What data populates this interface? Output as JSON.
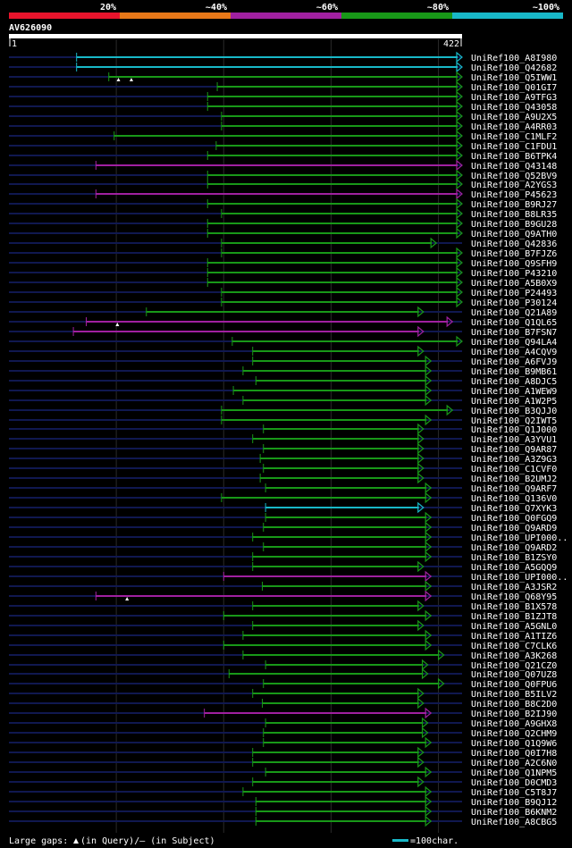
{
  "chart_data": {
    "type": "alignment",
    "query_id": "AV626090",
    "query_start": "1",
    "query_end": "422",
    "query_length": 422,
    "identity_legend": [
      {
        "label": "20%",
        "color": "#e8142c"
      },
      {
        "label": "~40%",
        "color": "#e87818"
      },
      {
        "label": "~60%",
        "color": "#a020a0"
      },
      {
        "label": "~80%",
        "color": "#189818"
      },
      {
        "label": "~100%",
        "color": "#18b8c8"
      }
    ],
    "colors": {
      "cyan": "#18b8c8",
      "green": "#189818",
      "magenta": "#a020a0",
      "bg_line": "#101850"
    },
    "hits": [
      {
        "name": "UniRef100_A8I980",
        "start": 63,
        "end": 422,
        "color": "cyan"
      },
      {
        "name": "UniRef100_Q42682",
        "start": 63,
        "end": 422,
        "color": "cyan"
      },
      {
        "name": "UniRef100_Q5IWW1",
        "start": 93,
        "end": 422,
        "color": "green",
        "gaps": [
          102,
          114
        ]
      },
      {
        "name": "UniRef100_Q01GI7",
        "start": 194,
        "end": 422,
        "color": "green"
      },
      {
        "name": "UniRef100_A9TFG3",
        "start": 185,
        "end": 422,
        "color": "green"
      },
      {
        "name": "UniRef100_Q43058",
        "start": 185,
        "end": 422,
        "color": "green"
      },
      {
        "name": "UniRef100_A9U2X5",
        "start": 198,
        "end": 422,
        "color": "green"
      },
      {
        "name": "UniRef100_A4RR03",
        "start": 198,
        "end": 422,
        "color": "green"
      },
      {
        "name": "UniRef100_C1MLF2",
        "start": 98,
        "end": 422,
        "color": "green"
      },
      {
        "name": "UniRef100_C1FDU1",
        "start": 193,
        "end": 422,
        "color": "green"
      },
      {
        "name": "UniRef100_B6TPK4",
        "start": 185,
        "end": 422,
        "color": "green"
      },
      {
        "name": "UniRef100_Q43148",
        "start": 81,
        "end": 422,
        "color": "magenta"
      },
      {
        "name": "UniRef100_Q52BV9",
        "start": 185,
        "end": 422,
        "color": "green"
      },
      {
        "name": "UniRef100_A2YGS3",
        "start": 185,
        "end": 422,
        "color": "green"
      },
      {
        "name": "UniRef100_P45623",
        "start": 81,
        "end": 422,
        "color": "magenta"
      },
      {
        "name": "UniRef100_B9RJ27",
        "start": 185,
        "end": 422,
        "color": "green"
      },
      {
        "name": "UniRef100_B8LR35",
        "start": 198,
        "end": 422,
        "color": "green"
      },
      {
        "name": "UniRef100_B9GU28",
        "start": 185,
        "end": 422,
        "color": "green"
      },
      {
        "name": "UniRef100_Q9ATH0",
        "start": 185,
        "end": 422,
        "color": "green"
      },
      {
        "name": "UniRef100_Q42836",
        "start": 198,
        "end": 398,
        "color": "green"
      },
      {
        "name": "UniRef100_B7FJZ6",
        "start": 198,
        "end": 422,
        "color": "green"
      },
      {
        "name": "UniRef100_Q9SFH9",
        "start": 185,
        "end": 422,
        "color": "green"
      },
      {
        "name": "UniRef100_P43210",
        "start": 185,
        "end": 422,
        "color": "green"
      },
      {
        "name": "UniRef100_A5B0X9",
        "start": 185,
        "end": 422,
        "color": "green"
      },
      {
        "name": "UniRef100_P24493",
        "start": 198,
        "end": 422,
        "color": "green"
      },
      {
        "name": "UniRef100_P30124",
        "start": 198,
        "end": 422,
        "color": "green"
      },
      {
        "name": "UniRef100_Q21A89",
        "start": 128,
        "end": 386,
        "color": "green"
      },
      {
        "name": "UniRef100_Q1QL65",
        "start": 72,
        "end": 413,
        "color": "magenta",
        "gaps": [
          101
        ]
      },
      {
        "name": "UniRef100_B7FSN7",
        "start": 60,
        "end": 386,
        "color": "magenta"
      },
      {
        "name": "UniRef100_Q94LA4",
        "start": 208,
        "end": 422,
        "color": "green"
      },
      {
        "name": "UniRef100_A4CQV9",
        "start": 227,
        "end": 386,
        "color": "green"
      },
      {
        "name": "UniRef100_A6FVJ9",
        "start": 227,
        "end": 393,
        "color": "green"
      },
      {
        "name": "UniRef100_B9MB61",
        "start": 218,
        "end": 393,
        "color": "green"
      },
      {
        "name": "UniRef100_A8DJC5",
        "start": 230,
        "end": 393,
        "color": "green"
      },
      {
        "name": "UniRef100_A1WEW9",
        "start": 209,
        "end": 393,
        "color": "green"
      },
      {
        "name": "UniRef100_A1W2P5",
        "start": 218,
        "end": 393,
        "color": "green"
      },
      {
        "name": "UniRef100_B3QJJ0",
        "start": 198,
        "end": 413,
        "color": "green"
      },
      {
        "name": "UniRef100_Q2IWT5",
        "start": 198,
        "end": 393,
        "color": "green"
      },
      {
        "name": "UniRef100_Q1J000",
        "start": 237,
        "end": 386,
        "color": "green"
      },
      {
        "name": "UniRef100_A3YVU1",
        "start": 227,
        "end": 386,
        "color": "green"
      },
      {
        "name": "UniRef100_Q9AR87",
        "start": 237,
        "end": 386,
        "color": "green"
      },
      {
        "name": "UniRef100_A3Z9G3",
        "start": 234,
        "end": 386,
        "color": "green"
      },
      {
        "name": "UniRef100_C1CVF0",
        "start": 237,
        "end": 386,
        "color": "green"
      },
      {
        "name": "UniRef100_B2UMJ2",
        "start": 234,
        "end": 386,
        "color": "green"
      },
      {
        "name": "UniRef100_Q9ARF7",
        "start": 239,
        "end": 393,
        "color": "green"
      },
      {
        "name": "UniRef100_Q136V0",
        "start": 198,
        "end": 393,
        "color": "green"
      },
      {
        "name": "UniRef100_Q7XYK3",
        "start": 239,
        "end": 386,
        "color": "cyan"
      },
      {
        "name": "UniRef100_Q0FGQ9",
        "start": 239,
        "end": 393,
        "color": "green"
      },
      {
        "name": "UniRef100_Q9ARD9",
        "start": 237,
        "end": 393,
        "color": "green"
      },
      {
        "name": "UniRef100_UPI000..",
        "start": 227,
        "end": 393,
        "color": "green"
      },
      {
        "name": "UniRef100_Q9ARD2",
        "start": 237,
        "end": 393,
        "color": "green"
      },
      {
        "name": "UniRef100_B1ZSY0",
        "start": 227,
        "end": 393,
        "color": "green"
      },
      {
        "name": "UniRef100_A5GQQ9",
        "start": 227,
        "end": 386,
        "color": "green"
      },
      {
        "name": "UniRef100_UPI000..",
        "start": 200,
        "end": 393,
        "color": "magenta"
      },
      {
        "name": "UniRef100_A3JSR2",
        "start": 236,
        "end": 393,
        "color": "green"
      },
      {
        "name": "UniRef100_Q68Y95",
        "start": 81,
        "end": 393,
        "color": "magenta",
        "gaps": [
          110
        ]
      },
      {
        "name": "UniRef100_B1X578",
        "start": 227,
        "end": 386,
        "color": "green"
      },
      {
        "name": "UniRef100_B1ZJT8",
        "start": 200,
        "end": 393,
        "color": "green"
      },
      {
        "name": "UniRef100_A5GNL0",
        "start": 227,
        "end": 386,
        "color": "green"
      },
      {
        "name": "UniRef100_A1TIZ6",
        "start": 218,
        "end": 393,
        "color": "green"
      },
      {
        "name": "UniRef100_C7CLK6",
        "start": 200,
        "end": 393,
        "color": "green"
      },
      {
        "name": "UniRef100_A3K268",
        "start": 218,
        "end": 405,
        "color": "green"
      },
      {
        "name": "UniRef100_Q21CZ0",
        "start": 239,
        "end": 390,
        "color": "green"
      },
      {
        "name": "UniRef100_Q07UZ8",
        "start": 205,
        "end": 390,
        "color": "green"
      },
      {
        "name": "UniRef100_Q0FPU6",
        "start": 237,
        "end": 405,
        "color": "green"
      },
      {
        "name": "UniRef100_B5ILV2",
        "start": 227,
        "end": 386,
        "color": "green"
      },
      {
        "name": "UniRef100_B8C2D0",
        "start": 236,
        "end": 386,
        "color": "green"
      },
      {
        "name": "UniRef100_B2IJ90",
        "start": 182,
        "end": 393,
        "color": "magenta"
      },
      {
        "name": "UniRef100_A9GHX8",
        "start": 239,
        "end": 390,
        "color": "green"
      },
      {
        "name": "UniRef100_Q2CHM9",
        "start": 237,
        "end": 390,
        "color": "green"
      },
      {
        "name": "UniRef100_Q1Q9W6",
        "start": 237,
        "end": 393,
        "color": "green"
      },
      {
        "name": "UniRef100_Q0I7H8",
        "start": 227,
        "end": 386,
        "color": "green"
      },
      {
        "name": "UniRef100_A2C6N0",
        "start": 227,
        "end": 386,
        "color": "green"
      },
      {
        "name": "UniRef100_Q1NPM5",
        "start": 239,
        "end": 393,
        "color": "green"
      },
      {
        "name": "UniRef100_D0CMD3",
        "start": 227,
        "end": 386,
        "color": "green"
      },
      {
        "name": "UniRef100_C5T8J7",
        "start": 218,
        "end": 393,
        "color": "green"
      },
      {
        "name": "UniRef100_B9QJ12",
        "start": 230,
        "end": 393,
        "color": "green"
      },
      {
        "name": "UniRef100_B6KNM2",
        "start": 230,
        "end": 393,
        "color": "green"
      },
      {
        "name": "UniRef100_A8CBG5",
        "start": 230,
        "end": 393,
        "color": "green"
      }
    ],
    "footer": {
      "gaps_prefix": "Large gaps: ",
      "gaps_text": "(in Query)/– (in Subject)",
      "scale_text": "=100char."
    }
  }
}
